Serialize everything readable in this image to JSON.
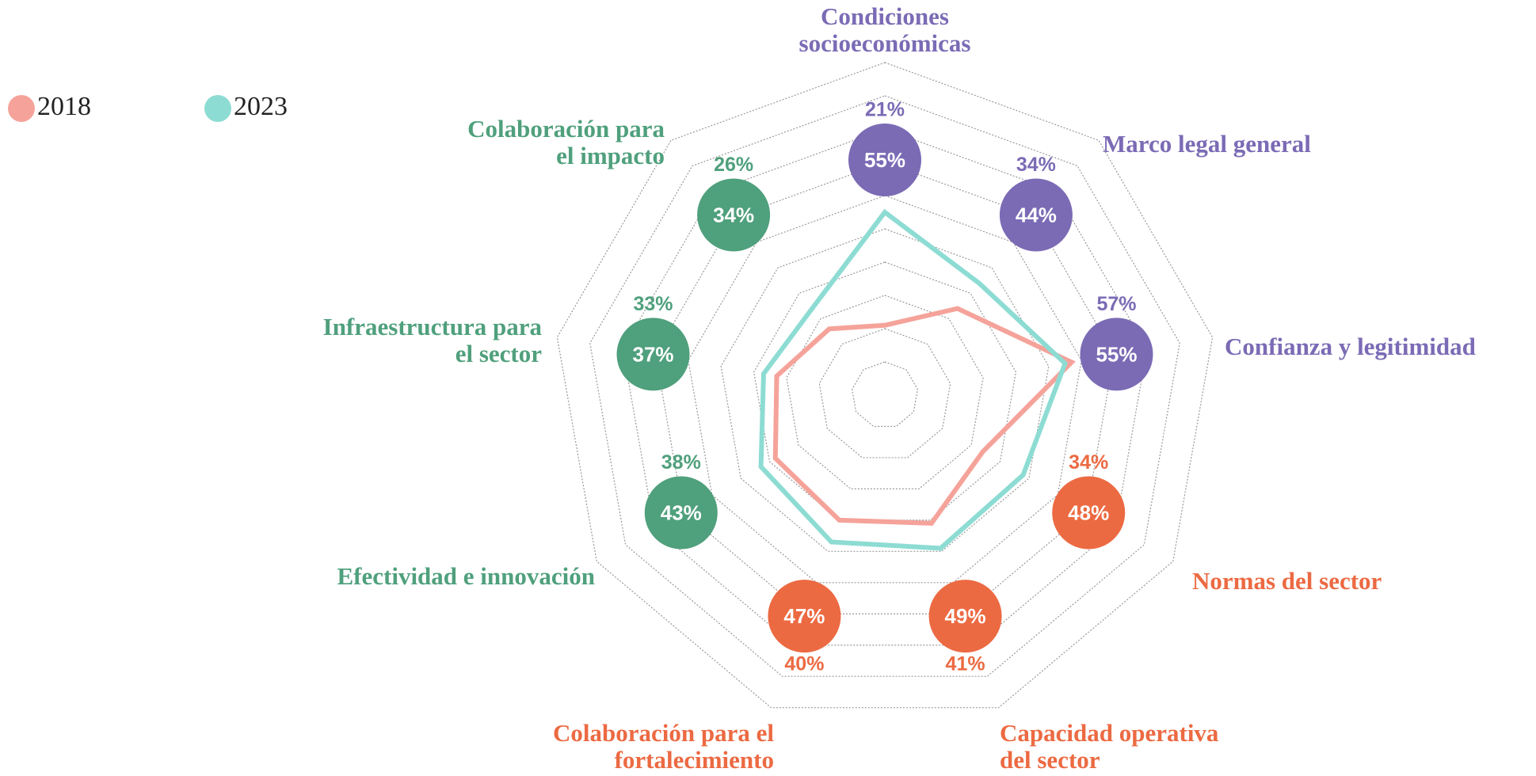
{
  "chart_data": {
    "type": "radar",
    "categories": [
      "Condiciones\nsocioeconómicas",
      "Marco legal general",
      "Confianza y legitimidad",
      "Normas del sector",
      "Capacidad operativa\ndel sector",
      "Colaboración para el\nfortalecimiento",
      "Efectividad e innovación",
      "Infraestructura para\nel sector",
      "Colaboración para\nel impacto"
    ],
    "category_colors": [
      "#7b6bb5",
      "#7b6bb5",
      "#7b6bb5",
      "#ec6a42",
      "#ec6a42",
      "#ec6a42",
      "#4fa07c",
      "#4fa07c",
      "#4fa07c"
    ],
    "series": [
      {
        "name": "2018",
        "color": "#f5a39a",
        "values": [
          21,
          34,
          57,
          34,
          41,
          40,
          38,
          33,
          26
        ],
        "value_labels": [
          "21%",
          "34%",
          "57%",
          "34%",
          "41%",
          "40%",
          "38%",
          "33%",
          "26%"
        ]
      },
      {
        "name": "2023",
        "color": "#8ddcd3",
        "values": [
          55,
          44,
          55,
          48,
          49,
          47,
          43,
          37,
          34
        ],
        "value_labels": [
          "55%",
          "44%",
          "55%",
          "48%",
          "49%",
          "47%",
          "43%",
          "37%",
          "34%"
        ]
      }
    ],
    "ylim": [
      0,
      100
    ],
    "yticks": [
      10,
      20,
      30,
      40,
      50,
      60,
      70,
      80,
      90,
      100
    ],
    "grid": true
  }
}
